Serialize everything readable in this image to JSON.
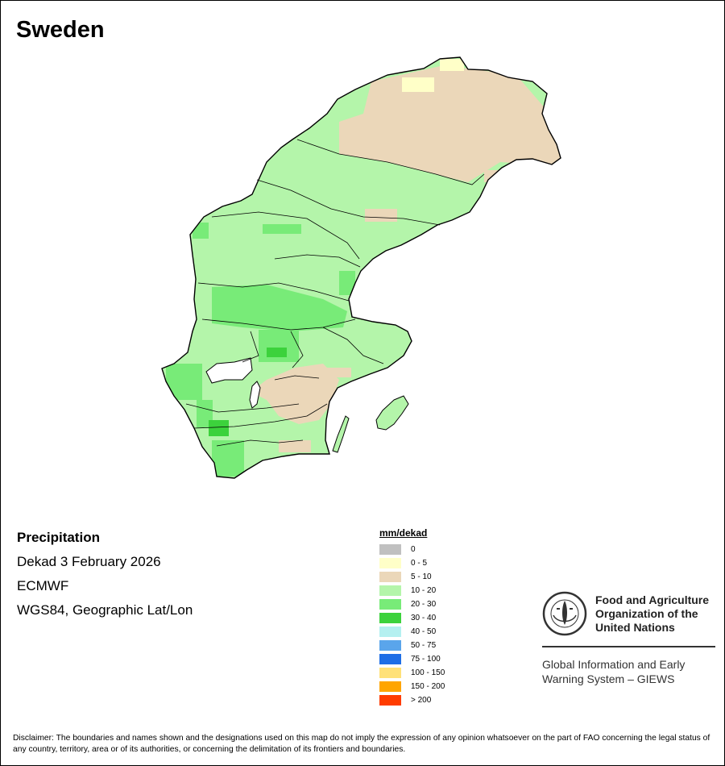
{
  "title": "Sweden",
  "info": {
    "variable": "Precipitation",
    "period": "Dekad 3 February 2026",
    "model": "ECMWF",
    "projection": "WGS84, Geographic Lat/Lon"
  },
  "legend": {
    "title": "mm/dekad",
    "items": [
      {
        "label": "0",
        "color": "#c0c0c0"
      },
      {
        "label": "0 - 5",
        "color": "#ffffc8"
      },
      {
        "label": "5 - 10",
        "color": "#ebd7b9"
      },
      {
        "label": "10 - 20",
        "color": "#b4f5aa"
      },
      {
        "label": "20 - 30",
        "color": "#78eb78"
      },
      {
        "label": "30 - 40",
        "color": "#3cd23c"
      },
      {
        "label": "40 - 50",
        "color": "#b4f0f0"
      },
      {
        "label": "50 - 75",
        "color": "#5aa5eb"
      },
      {
        "label": "75 - 100",
        "color": "#1e6ee6"
      },
      {
        "label": "100 - 150",
        "color": "#ffe178"
      },
      {
        "label": "150 - 200",
        "color": "#ffa500"
      },
      {
        "label": "> 200",
        "color": "#ff3c00"
      }
    ]
  },
  "fao": {
    "name_line1": "Food and Agriculture",
    "name_line2": "Organization of the",
    "name_line3": "United Nations",
    "giews_line1": "Global Information and Early",
    "giews_line2": "Warning System – GIEWS"
  },
  "disclaimer": "Disclaimer: The boundaries and names shown and the designations used on this map do not imply the expression of any opinion whatsoever on the part of FAO concerning the legal status of any country, territory, area or of its authorities, or concerning the delimitation of its frontiers and boundaries."
}
